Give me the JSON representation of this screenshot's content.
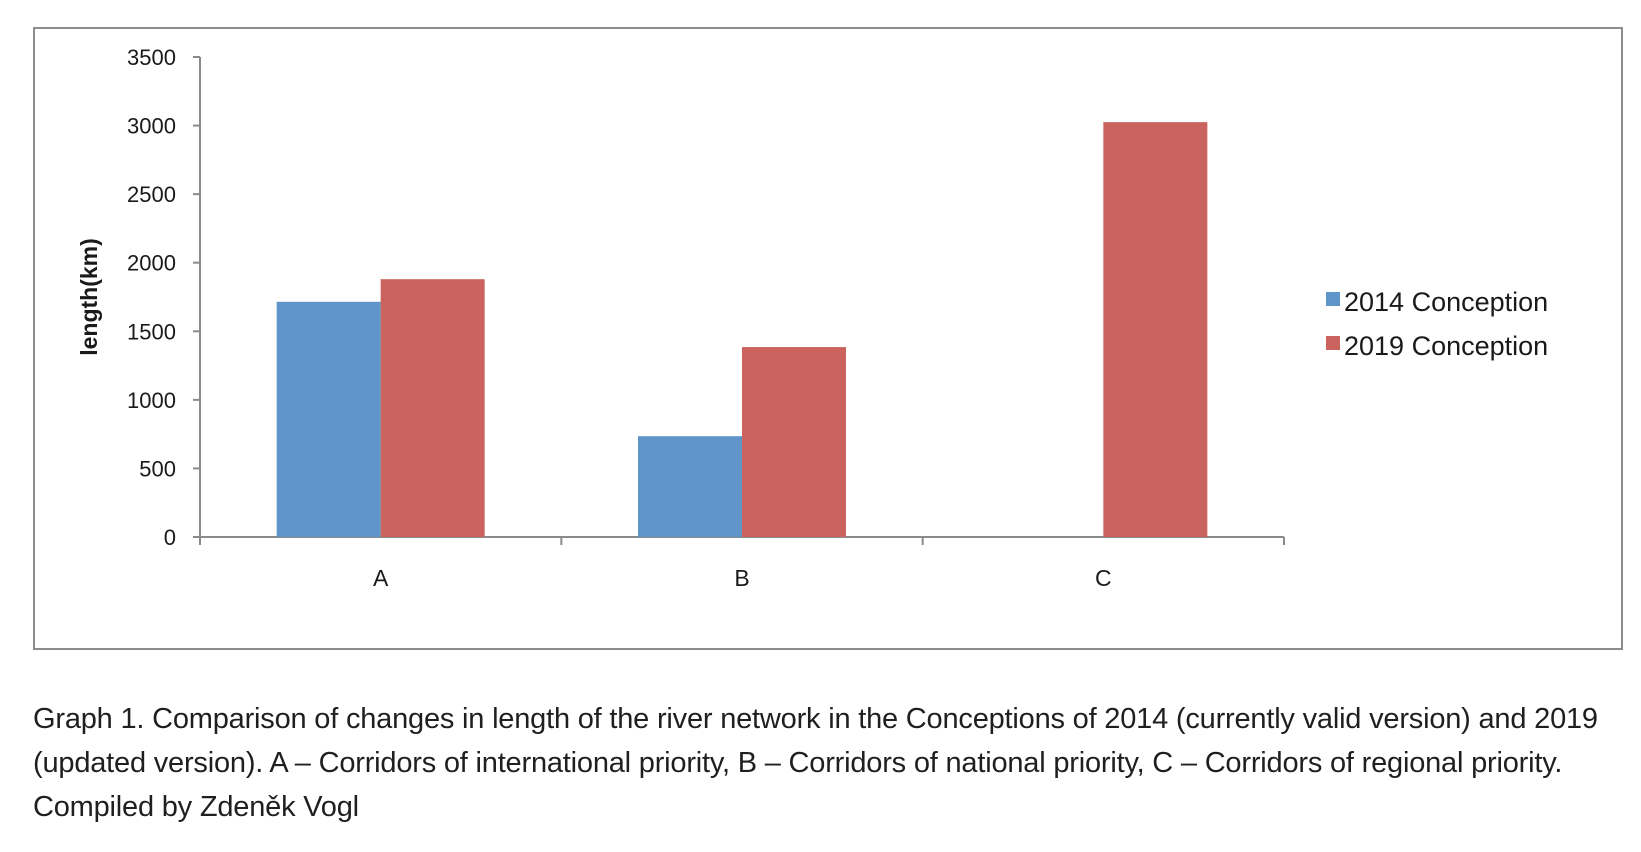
{
  "chart_data": {
    "type": "bar",
    "categories": [
      "A",
      "B",
      "C"
    ],
    "series": [
      {
        "name": "2014 Conception",
        "values": [
          1715,
          735,
          0
        ],
        "color": "#5f95c8"
      },
      {
        "name": "2019 Conception",
        "values": [
          1880,
          1385,
          3025
        ],
        "color": "#ca635d"
      }
    ],
    "xlabel": "",
    "ylabel": "length(km)",
    "ylim": [
      0,
      3500
    ],
    "yticks": [
      0,
      500,
      1000,
      1500,
      2000,
      2500,
      3000,
      3500
    ],
    "grid": false,
    "legend_position": "right"
  },
  "caption": "Graph 1. Comparison of changes in length of the river network in the Conceptions of 2014 (currently valid version) and 2019 (updated version). A – Corridors of international priority, B – Corridors of national priority, C – Corridors of regional priority. Compiled by Zdeněk Vogl"
}
